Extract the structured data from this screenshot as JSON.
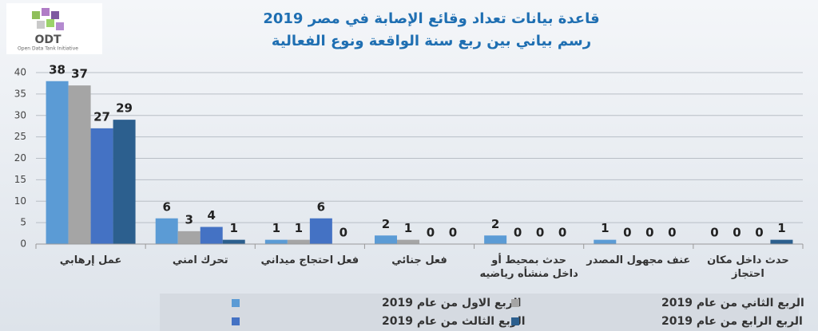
{
  "logo": {
    "title": "ODT",
    "subtitle": "Open Data Tank Initiative"
  },
  "chart_data": {
    "type": "bar",
    "title": "قاعدة بيانات تعداد وقائع الإصابة في مصر 2019",
    "subtitle": "رسم بياني بين ربع سنة الواقعة ونوع الفعالية",
    "categories": [
      "عمل إرهابي",
      "تحرك امني",
      "فعل احتجاج ميداني",
      "فعل جنائي",
      "حدث بمحيط أو داخل منشأه رياضيه",
      "عنف مجهول المصدر",
      "حدث داخل مكان احتجاز"
    ],
    "series": [
      {
        "name": "الربع الاول من عام 2019",
        "color": "#5b9bd5",
        "values": [
          38,
          6,
          1,
          2,
          2,
          1,
          0
        ]
      },
      {
        "name": "الربع الثاني من عام 2019",
        "color": "#a5a5a5",
        "values": [
          37,
          3,
          1,
          1,
          0,
          0,
          0
        ]
      },
      {
        "name": "الربع الثالث من عام 2019",
        "color": "#4472c4",
        "values": [
          27,
          4,
          6,
          0,
          0,
          0,
          0
        ]
      },
      {
        "name": "الربع الرابع من عام 2019",
        "color": "#2c5f8e",
        "values": [
          29,
          1,
          0,
          0,
          0,
          0,
          1
        ]
      }
    ],
    "ylim": [
      0,
      40
    ],
    "yticks": [
      0,
      5,
      10,
      15,
      20,
      25,
      30,
      35,
      40
    ],
    "grid": true
  }
}
